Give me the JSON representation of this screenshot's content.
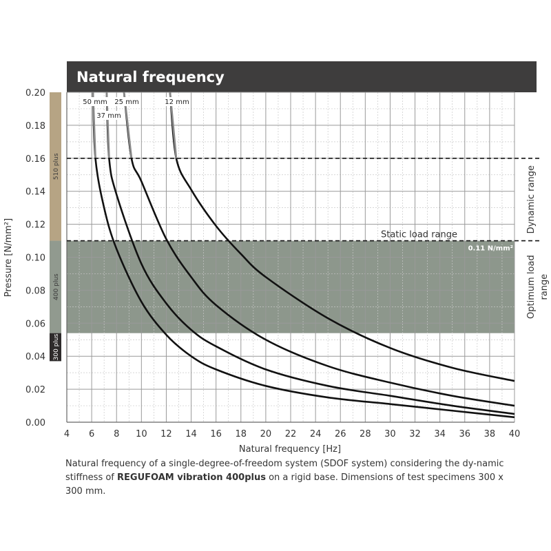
{
  "chart_data": {
    "type": "line",
    "title": "Natural frequency",
    "xlabel": "Natural frequency [Hz]",
    "ylabel": "Pressure [N/mm²]",
    "xlim": [
      4,
      40
    ],
    "ylim": [
      0,
      0.2
    ],
    "xticks": [
      4,
      6,
      8,
      10,
      12,
      14,
      16,
      18,
      20,
      22,
      24,
      26,
      28,
      30,
      32,
      34,
      36,
      38,
      40
    ],
    "yticks": [
      "0.00",
      "0.02",
      "0.04",
      "0.06",
      "0.08",
      "0.10",
      "0.12",
      "0.14",
      "0.16",
      "0.18",
      "0.20"
    ],
    "series": [
      {
        "name": "50 mm",
        "x": [
          6.1,
          6.3,
          7.0,
          8.0,
          10.0,
          12.0,
          14.0,
          16.0,
          20.0,
          25.0,
          30.0,
          35.0,
          40.0
        ],
        "y": [
          0.2,
          0.16,
          0.13,
          0.105,
          0.073,
          0.053,
          0.04,
          0.032,
          0.022,
          0.015,
          0.011,
          0.007,
          0.003
        ]
      },
      {
        "name": "37 mm",
        "x": [
          7.2,
          7.4,
          8.0,
          10.0,
          12.0,
          14.0,
          16.0,
          20.0,
          25.0,
          30.0,
          35.0,
          40.0
        ],
        "y": [
          0.2,
          0.16,
          0.138,
          0.096,
          0.072,
          0.056,
          0.046,
          0.032,
          0.022,
          0.016,
          0.01,
          0.005
        ]
      },
      {
        "name": "25 mm",
        "x": [
          8.6,
          9.2,
          10.0,
          12.0,
          14.0,
          16.0,
          20.0,
          25.0,
          30.0,
          35.0,
          40.0
        ],
        "y": [
          0.2,
          0.16,
          0.146,
          0.111,
          0.088,
          0.071,
          0.05,
          0.034,
          0.024,
          0.016,
          0.01
        ]
      },
      {
        "name": "12 mm",
        "x": [
          12.3,
          12.8,
          14.0,
          16.0,
          18.0,
          20.0,
          25.0,
          30.0,
          35.0,
          40.0
        ],
        "y": [
          0.2,
          0.16,
          0.141,
          0.119,
          0.102,
          0.088,
          0.063,
          0.045,
          0.033,
          0.025
        ]
      }
    ],
    "curve_labels": [
      "50 mm",
      "37 mm",
      "25 mm",
      "12 mm"
    ],
    "optimum_band": {
      "y_min": 0.054,
      "y_max": 0.11,
      "label": "Optimum load range"
    },
    "dashed_lines": [
      {
        "y": 0.16,
        "label": ""
      },
      {
        "y": 0.11,
        "label": "Static load range",
        "value_label": "0.11 N/mm²"
      }
    ],
    "dynamic_range": {
      "label": "Dynamic range",
      "y_min": 0.11,
      "y_max": 0.16
    },
    "product_bands": [
      {
        "label": "510 plus",
        "y_min": 0.11,
        "y_max": 0.2,
        "color": "#b6a484"
      },
      {
        "label": "400 plus",
        "y_min": 0.054,
        "y_max": 0.11,
        "color": "#919a8f"
      },
      {
        "label": "300 plus",
        "y_min": 0.037,
        "y_max": 0.054,
        "color": "#2e2b2b"
      }
    ]
  },
  "caption": {
    "part1": "Natural frequency of a single-degree-of-freedom system (SDOF system) considering the dy-namic stiffness of ",
    "bold": "REGUFOAM vibration 400plus",
    "part2": " on a rigid base. Dimensions of test specimens 300 x 300 mm."
  },
  "colors": {
    "header_bg": "#3e3d3d",
    "band": "#8d978c",
    "grid": "#999999",
    "curve": "#111111",
    "curve_top": "#888888"
  }
}
